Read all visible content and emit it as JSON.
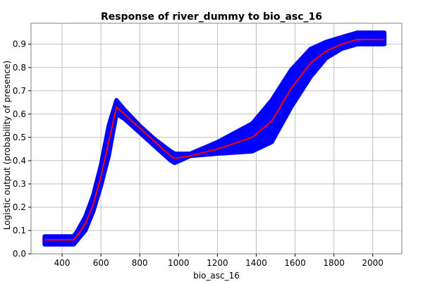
{
  "chart_data": {
    "type": "line",
    "title": "Response of river_dummy to bio_asc_16",
    "xlabel": "bio_asc_16",
    "ylabel": "Logistic output (probability of presence)",
    "xlim": [
      240,
      2150
    ],
    "ylim": [
      0,
      0.99
    ],
    "x_ticks": [
      400,
      600,
      800,
      1000,
      1200,
      1400,
      1600,
      1800,
      2000
    ],
    "y_ticks": [
      0.0,
      0.1,
      0.2,
      0.3,
      0.4,
      0.5,
      0.6,
      0.7,
      0.8,
      0.9
    ],
    "y_tick_labels": [
      "0.0",
      "0.1",
      "0.2",
      "0.3",
      "0.4",
      "0.5",
      "0.6",
      "0.7",
      "0.8",
      "0.9"
    ],
    "grid": true,
    "colors": {
      "mean": "#ff0000",
      "band": "#0000ff"
    },
    "series": [
      {
        "role": "mean",
        "x": [
          310,
          460,
          480,
          520,
          560,
          600,
          640,
          680,
          720,
          800,
          880,
          960,
          980,
          1060,
          1200,
          1380,
          1480,
          1580,
          1680,
          1760,
          1840,
          1920,
          2060
        ],
        "y": [
          0.06,
          0.06,
          0.08,
          0.13,
          0.21,
          0.33,
          0.48,
          0.63,
          0.6,
          0.54,
          0.48,
          0.42,
          0.41,
          0.42,
          0.45,
          0.5,
          0.57,
          0.71,
          0.82,
          0.87,
          0.9,
          0.92,
          0.92
        ]
      },
      {
        "role": "band-upper",
        "x": [
          310,
          460,
          480,
          520,
          560,
          600,
          640,
          680,
          720,
          800,
          880,
          960,
          980,
          1060,
          1200,
          1380,
          1480,
          1580,
          1680,
          1760,
          1840,
          1920,
          2060
        ],
        "y": [
          0.075,
          0.075,
          0.1,
          0.16,
          0.25,
          0.38,
          0.55,
          0.66,
          0.62,
          0.55,
          0.49,
          0.44,
          0.43,
          0.43,
          0.48,
          0.56,
          0.66,
          0.79,
          0.88,
          0.91,
          0.93,
          0.95,
          0.95
        ]
      },
      {
        "role": "band-lower",
        "x": [
          310,
          460,
          480,
          520,
          560,
          600,
          640,
          680,
          720,
          800,
          880,
          960,
          980,
          1060,
          1200,
          1380,
          1480,
          1580,
          1680,
          1760,
          1840,
          1920,
          2060
        ],
        "y": [
          0.04,
          0.04,
          0.06,
          0.1,
          0.18,
          0.29,
          0.42,
          0.6,
          0.58,
          0.52,
          0.46,
          0.4,
          0.39,
          0.42,
          0.43,
          0.44,
          0.48,
          0.63,
          0.76,
          0.84,
          0.88,
          0.9,
          0.9
        ]
      }
    ]
  }
}
